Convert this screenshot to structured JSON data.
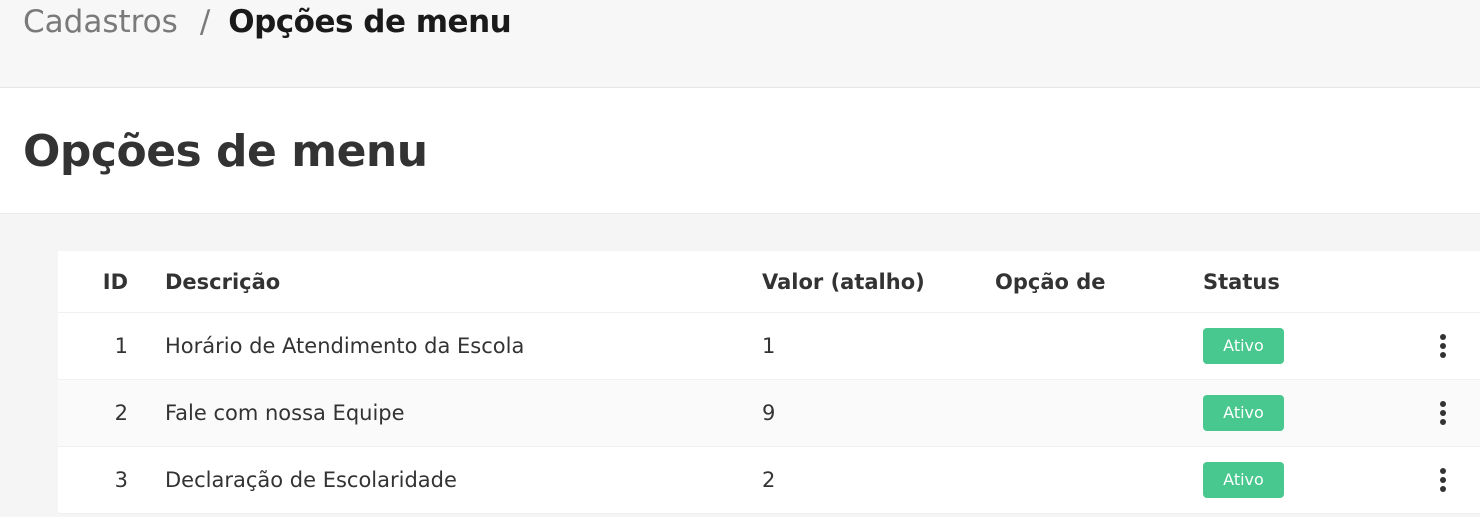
{
  "breadcrumb": {
    "parent": "Cadastros",
    "separator": "/",
    "current": "Opções de menu"
  },
  "page_title": "Opções de menu",
  "table": {
    "headers": {
      "id": "ID",
      "desc": "Descrição",
      "val": "Valor (atalho)",
      "op": "Opção de",
      "status": "Status"
    },
    "rows": [
      {
        "id": "1",
        "desc": "Horário de Atendimento da Escola",
        "val": "1",
        "op": "",
        "status": "Ativo"
      },
      {
        "id": "2",
        "desc": "Fale com nossa Equipe",
        "val": "9",
        "op": "",
        "status": "Ativo"
      },
      {
        "id": "3",
        "desc": "Declaração de Escolaridade",
        "val": "2",
        "op": "",
        "status": "Ativo"
      }
    ]
  },
  "colors": {
    "status_active": "#48c78e"
  },
  "icons": {
    "row_actions": "more-vertical-icon"
  }
}
